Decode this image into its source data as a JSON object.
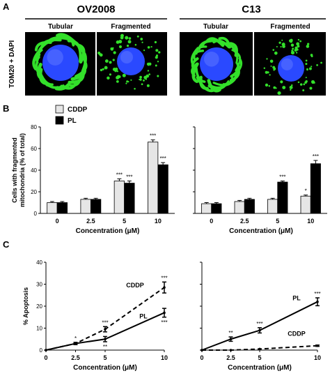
{
  "panel_labels": {
    "a": "A",
    "b": "B",
    "c": "C"
  },
  "panel_a": {
    "cell_lines": [
      "OV2008",
      "C13"
    ],
    "morphologies": [
      "Tubular",
      "Fragmented"
    ],
    "stain_label": "TOM20 + DAPI",
    "colors": {
      "nucleus": "#2a49ff",
      "mito": "#33e02a",
      "background": "#000000"
    }
  },
  "chart_data": [
    {
      "id": "B-left",
      "type": "bar",
      "categories": [
        "0",
        "2.5",
        "5",
        "10"
      ],
      "series": [
        {
          "name": "CDDP",
          "values": [
            10,
            13,
            30,
            66
          ],
          "errors": [
            1,
            1,
            2,
            2
          ],
          "sig": [
            "",
            "",
            "***",
            "***"
          ]
        },
        {
          "name": "PL",
          "values": [
            10,
            13,
            28,
            45
          ],
          "errors": [
            1,
            1,
            2,
            2
          ],
          "sig": [
            "",
            "",
            "***",
            "***"
          ]
        }
      ],
      "ylabel": "Cells with fragmented\nmitochondria (% of total)",
      "xlabel": "Concentration (μM)",
      "ylim": [
        0,
        80
      ],
      "legend": "top-left",
      "colors": {
        "CDDP": "#e6e6e6",
        "PL": "#000000"
      }
    },
    {
      "id": "B-right",
      "type": "bar",
      "categories": [
        "0",
        "2.5",
        "5",
        "10"
      ],
      "series": [
        {
          "name": "CDDP",
          "values": [
            9,
            11,
            13,
            16
          ],
          "errors": [
            1,
            1,
            1,
            1
          ],
          "sig": [
            "",
            "",
            "",
            "*"
          ]
        },
        {
          "name": "PL",
          "values": [
            9,
            13,
            29,
            46
          ],
          "errors": [
            1,
            1,
            1,
            3
          ],
          "sig": [
            "",
            "",
            "***",
            "***"
          ]
        }
      ],
      "xlabel": "Concentration (μM)",
      "ylim": [
        0,
        80
      ],
      "colors": {
        "CDDP": "#e6e6e6",
        "PL": "#000000"
      }
    },
    {
      "id": "C-left",
      "type": "line",
      "x": [
        0,
        2.5,
        5,
        10
      ],
      "series": [
        {
          "name": "CDDP",
          "values": [
            0,
            3,
            9.5,
            28.5
          ],
          "errors": [
            0,
            0.5,
            1.2,
            2.5
          ],
          "sig": [
            "",
            "*",
            "***",
            "***"
          ],
          "style": "dashed"
        },
        {
          "name": "PL",
          "values": [
            0,
            3,
            5,
            17
          ],
          "errors": [
            0,
            0.5,
            1.2,
            2
          ],
          "sig": [
            "",
            "",
            "**",
            "***"
          ],
          "style": "solid"
        }
      ],
      "ylabel": "% Apoptosis",
      "xlabel": "Concentration (μM)",
      "ylim": [
        0,
        40
      ]
    },
    {
      "id": "C-right",
      "type": "line",
      "x": [
        0,
        2.5,
        5,
        10
      ],
      "series": [
        {
          "name": "PL",
          "values": [
            0,
            5,
            9,
            22
          ],
          "errors": [
            0,
            1,
            1.2,
            1.8
          ],
          "sig": [
            "",
            "**",
            "***",
            "***"
          ],
          "style": "solid"
        },
        {
          "name": "CDDP",
          "values": [
            0,
            0,
            0.5,
            2
          ],
          "errors": [
            0,
            0,
            0,
            0.3
          ],
          "sig": [
            "",
            "",
            "",
            ""
          ],
          "style": "dashed"
        }
      ],
      "xlabel": "Concentration (μM)",
      "ylim": [
        0,
        40
      ]
    }
  ]
}
